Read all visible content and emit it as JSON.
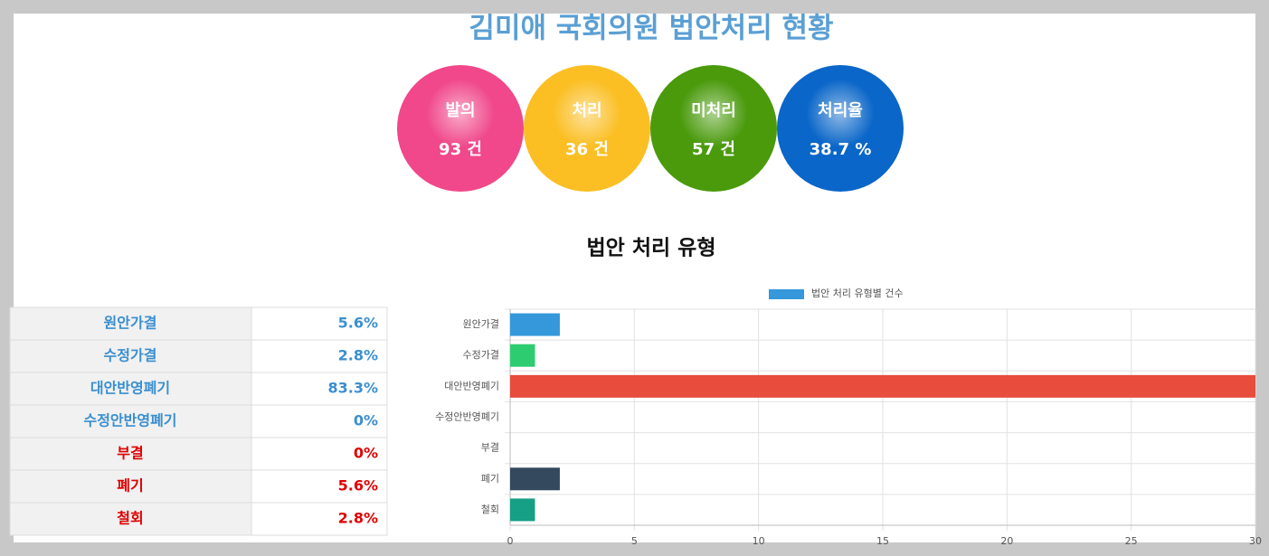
{
  "header": {
    "title": "김미애 국회의원 법안처리 현황"
  },
  "stats": [
    {
      "label": "발의",
      "value": "93 건",
      "color": "#f0488a"
    },
    {
      "label": "처리",
      "value": "36 건",
      "color": "#fbbf24"
    },
    {
      "label": "미처리",
      "value": "57 건",
      "color": "#4a9a0c"
    },
    {
      "label": "처리율",
      "value": "38.7 %",
      "color": "#0a66c8"
    }
  ],
  "section": {
    "title": "법안 처리 유형"
  },
  "table": {
    "rows": [
      {
        "label": "원안가결",
        "value": "5.6%",
        "color": "#3a8fd0"
      },
      {
        "label": "수정가결",
        "value": "2.8%",
        "color": "#3a8fd0"
      },
      {
        "label": "대안반영폐기",
        "value": "83.3%",
        "color": "#3a8fd0"
      },
      {
        "label": "수정안반영폐기",
        "value": "0%",
        "color": "#3a8fd0"
      },
      {
        "label": "부결",
        "value": "0%",
        "color": "#e00000"
      },
      {
        "label": "폐기",
        "value": "5.6%",
        "color": "#e00000"
      },
      {
        "label": "철회",
        "value": "2.8%",
        "color": "#e00000"
      }
    ]
  },
  "chart_data": {
    "type": "hbar",
    "categories": [
      "원안가결",
      "수정가결",
      "대안반영폐기",
      "수정안반영폐기",
      "부결",
      "폐기",
      "철회"
    ],
    "series": [
      {
        "name": "법안 처리 유형별 건수",
        "color": "#3498db",
        "colors": [
          "#3498db",
          "#2ecc71",
          "#e74c3c",
          "#9b59b6",
          "#f1c40f",
          "#34495e",
          "#16a085"
        ],
        "values": [
          2,
          1,
          30,
          0,
          0,
          2,
          1
        ]
      }
    ],
    "xlim": [
      0,
      30
    ],
    "xticks": [
      0,
      5,
      10,
      15,
      20,
      25,
      30
    ],
    "grid": true
  }
}
